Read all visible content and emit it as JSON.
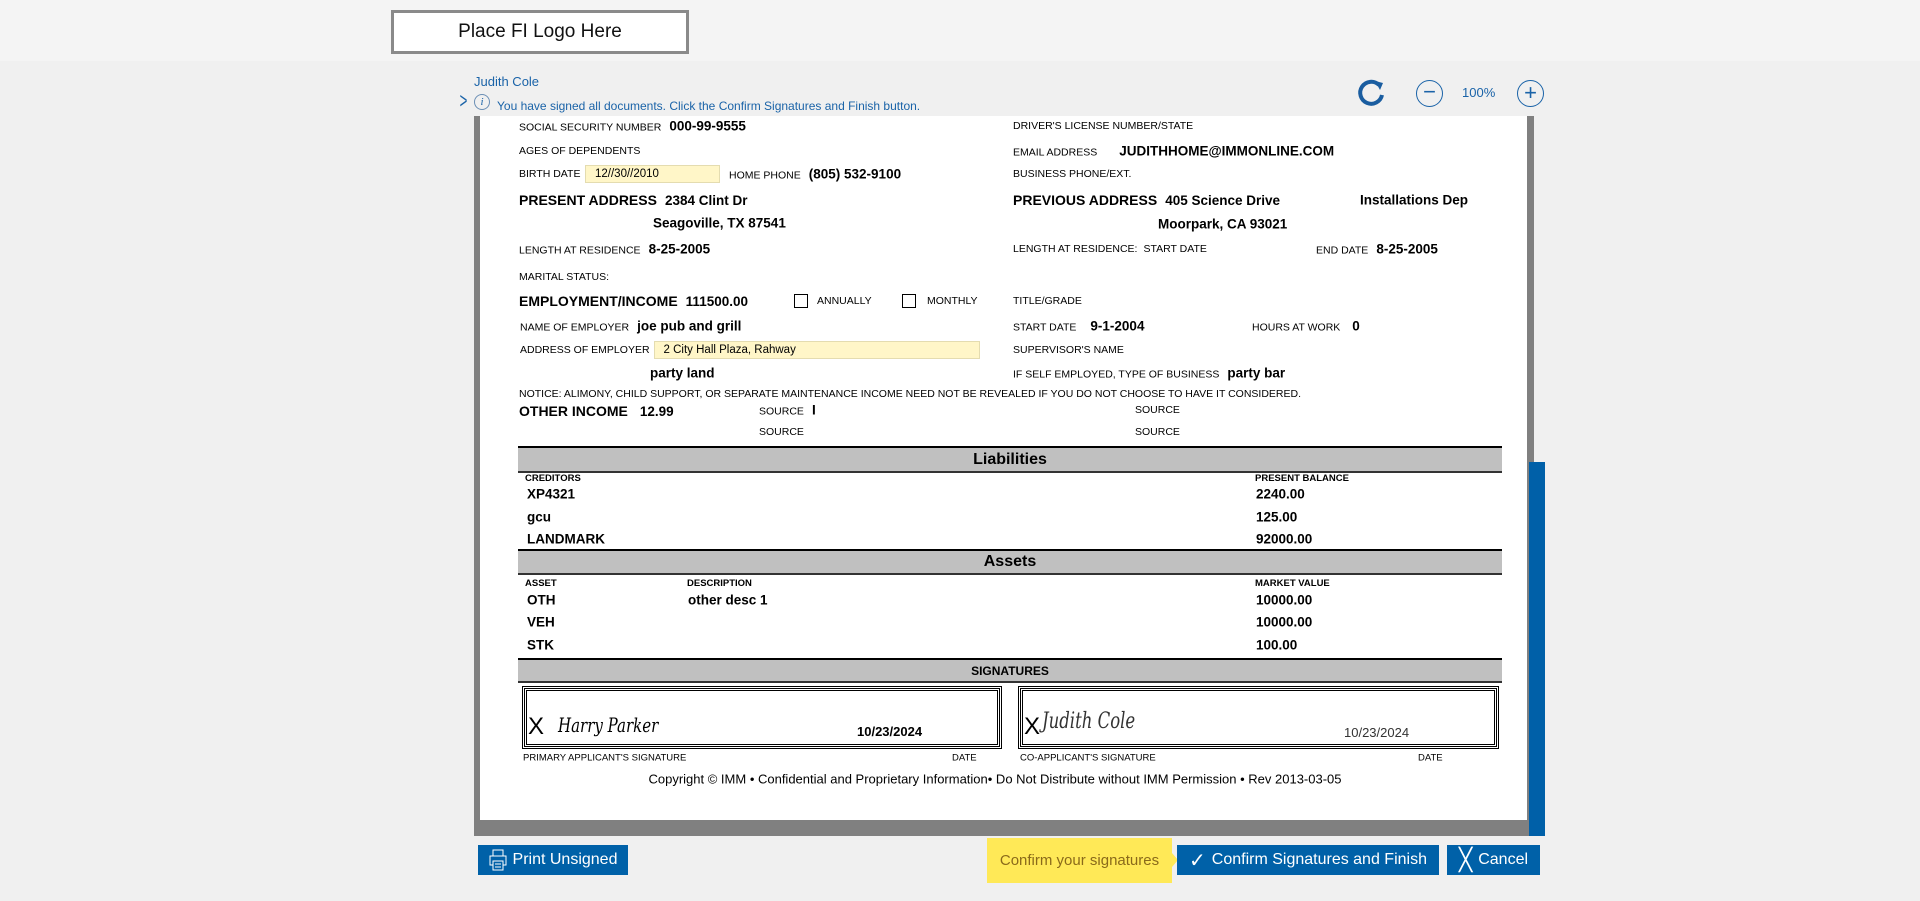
{
  "header": {
    "logo_text": "Place FI Logo Here"
  },
  "signer": {
    "name": "Judith Cole",
    "info": "You have signed all documents. Click the Confirm Signatures and Finish button."
  },
  "toolbar": {
    "zoom": "100%"
  },
  "form": {
    "ssn_label": "SOCIAL SECURITY NUMBER",
    "ssn": "000-99-9555",
    "dl_label": "DRIVER'S LICENSE NUMBER/STATE",
    "ages_label": "AGES OF DEPENDENTS",
    "email_label": "EMAIL ADDRESS",
    "email": "JUDITHHOME@IMMONLINE.COM",
    "birth_label": "BIRTH DATE",
    "birth": "12//30//2010",
    "home_phone_label": "HOME PHONE",
    "home_phone": "(805) 532-9100",
    "business_phone_label": "BUSINESS PHONE/EXT.",
    "present_label": "PRESENT ADDRESS",
    "present1": "2384 Clint Dr",
    "present2": "Seagoville, TX 87541",
    "previous_label": "PREVIOUS ADDRESS",
    "previous1": "405 Science Drive",
    "previous_extra": "Installations Dep",
    "previous2": "Moorpark, CA 93021",
    "length_label": "LENGTH AT RESIDENCE",
    "length": "8-25-2005",
    "length2_label": "LENGTH AT RESIDENCE:",
    "start_date_label": "START DATE",
    "end_date_label": "END DATE",
    "end_date": "8-25-2005",
    "marital_label": "MARITAL STATUS:",
    "employment_label": "EMPLOYMENT/INCOME",
    "employment": "111500.00",
    "annually": "ANNUALLY",
    "monthly": "MONTHLY",
    "title_label": "TITLE/GRADE",
    "employer_label": "NAME OF EMPLOYER",
    "employer": "joe pub and grill",
    "emp_start_label": "START DATE",
    "emp_start": "9-1-2004",
    "hours_label": "HOURS AT WORK",
    "hours": "0",
    "emp_addr_label": "ADDRESS OF EMPLOYER",
    "emp_addr": "2 City Hall Plaza, Rahway",
    "emp_addr2": "party land",
    "supervisor_label": "SUPERVISOR'S NAME",
    "self_label": "IF SELF EMPLOYED, TYPE OF BUSINESS",
    "self": "party bar",
    "notice": "NOTICE: ALIMONY, CHILD SUPPORT, OR SEPARATE MAINTENANCE INCOME NEED NOT BE REVEALED IF YOU DO NOT CHOOSE TO HAVE IT CONSIDERED.",
    "other_label": "OTHER INCOME",
    "other": "12.99",
    "source_label": "SOURCE",
    "source1": "I"
  },
  "liabilities": {
    "title": "Liabilities",
    "col1": "CREDITORS",
    "col2": "PRESENT BALANCE",
    "rows": [
      {
        "name": "XP4321",
        "balance": "2240.00"
      },
      {
        "name": "gcu",
        "balance": "125.00"
      },
      {
        "name": "LANDMARK",
        "balance": "92000.00"
      }
    ]
  },
  "assets": {
    "title": "Assets",
    "col1": "ASSET",
    "col2": "DESCRIPTION",
    "col3": "MARKET VALUE",
    "rows": [
      {
        "asset": "OTH",
        "desc": "other desc 1",
        "value": "10000.00"
      },
      {
        "asset": "VEH",
        "desc": "",
        "value": "10000.00"
      },
      {
        "asset": "STK",
        "desc": "",
        "value": "100.00"
      }
    ]
  },
  "signatures": {
    "title": "SIGNATURES",
    "x": "X",
    "primary": {
      "name": "Harry Parker",
      "date": "10/23/2024",
      "label": "PRIMARY APPLICANT'S SIGNATURE",
      "date_label": "DATE"
    },
    "co": {
      "name": "Judith Cole",
      "date": "10/23/2024",
      "label": "CO-APPLICANT'S SIGNATURE",
      "date_label": "DATE"
    }
  },
  "copyright": "Copyright © IMM • Confidential and Proprietary Information• Do Not Distribute without IMM Permission • Rev 2013-03-05",
  "footer": {
    "print": "Print Unsigned",
    "hint": "Confirm your signatures",
    "confirm": "Confirm Signatures and Finish",
    "cancel": "Cancel"
  },
  "colors": {
    "accent": "#0061a8",
    "hint": "#ffe957"
  }
}
